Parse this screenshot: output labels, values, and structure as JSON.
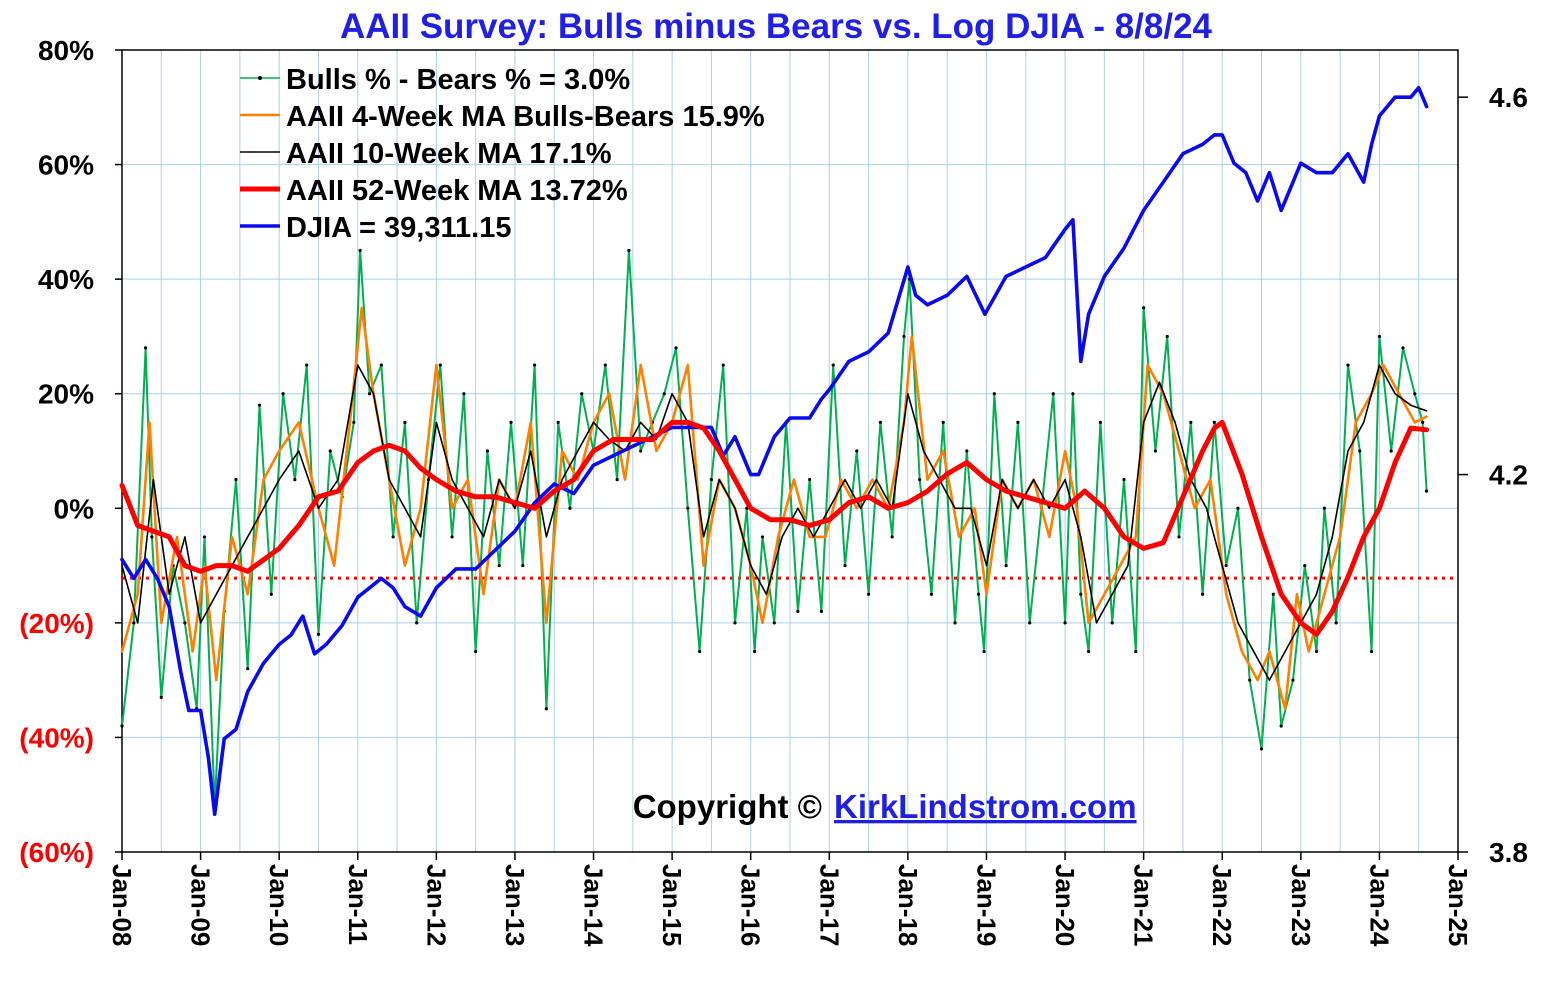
{
  "chart_data": {
    "type": "line",
    "title": "AAII Survey: Bulls minus Bears vs. Log DJIA -  8/8/24",
    "left_axis": {
      "ylim": [
        -60,
        80
      ],
      "ticks": [
        80,
        60,
        40,
        20,
        0,
        -20,
        -40,
        -60
      ],
      "tick_labels": [
        "80%",
        "60%",
        "40%",
        "20%",
        "0%",
        "(20%)",
        "(40%)",
        "(60%)"
      ]
    },
    "right_axis": {
      "ylim": [
        3.8,
        4.65
      ],
      "ticks": [
        4.6,
        4.2,
        3.8
      ],
      "tick_labels": [
        "4.6",
        "4.2",
        "3.8"
      ]
    },
    "x_axis": {
      "xlim": [
        2008.0,
        2025.0
      ],
      "ticks": [
        2008,
        2009,
        2010,
        2011,
        2012,
        2013,
        2014,
        2015,
        2016,
        2017,
        2018,
        2019,
        2020,
        2021,
        2022,
        2023,
        2024,
        2025
      ],
      "tick_labels": [
        "Jan-08",
        "Jan-09",
        "Jan-10",
        "Jan-11",
        "Jan-12",
        "Jan-13",
        "Jan-14",
        "Jan-15",
        "Jan-16",
        "Jan-17",
        "Jan-18",
        "Jan-19",
        "Jan-20",
        "Jan-21",
        "Jan-22",
        "Jan-23",
        "Jan-24",
        "Jan-25"
      ]
    },
    "reference_line": {
      "value": -12.2,
      "color": "#ff0000",
      "style": "dotted"
    },
    "series": [
      {
        "name": "Bulls % - Bears % = 3.0%",
        "color": "#00b050",
        "axis": "left",
        "x": [
          2008.0,
          2008.15,
          2008.3,
          2008.38,
          2008.5,
          2008.65,
          2008.8,
          2008.95,
          2009.05,
          2009.18,
          2009.3,
          2009.45,
          2009.6,
          2009.75,
          2009.9,
          2010.05,
          2010.2,
          2010.35,
          2010.5,
          2010.65,
          2010.8,
          2010.95,
          2011.03,
          2011.15,
          2011.3,
          2011.45,
          2011.6,
          2011.75,
          2011.9,
          2012.05,
          2012.2,
          2012.35,
          2012.5,
          2012.65,
          2012.8,
          2012.95,
          2013.1,
          2013.25,
          2013.4,
          2013.55,
          2013.7,
          2013.85,
          2014.0,
          2014.15,
          2014.3,
          2014.45,
          2014.6,
          2014.75,
          2014.9,
          2015.05,
          2015.2,
          2015.35,
          2015.5,
          2015.65,
          2015.8,
          2015.95,
          2016.05,
          2016.15,
          2016.3,
          2016.45,
          2016.6,
          2016.75,
          2016.9,
          2017.05,
          2017.2,
          2017.35,
          2017.5,
          2017.65,
          2017.8,
          2017.95,
          2018.02,
          2018.15,
          2018.3,
          2018.45,
          2018.6,
          2018.75,
          2018.9,
          2018.97,
          2019.1,
          2019.25,
          2019.4,
          2019.55,
          2019.7,
          2019.85,
          2020.0,
          2020.1,
          2020.2,
          2020.3,
          2020.45,
          2020.6,
          2020.75,
          2020.9,
          2021.0,
          2021.15,
          2021.3,
          2021.45,
          2021.6,
          2021.75,
          2021.9,
          2022.05,
          2022.2,
          2022.35,
          2022.5,
          2022.65,
          2022.75,
          2022.9,
          2023.05,
          2023.2,
          2023.3,
          2023.45,
          2023.6,
          2023.75,
          2023.9,
          2024.0,
          2024.15,
          2024.3,
          2024.45,
          2024.55,
          2024.6
        ],
        "values": [
          -38,
          -20,
          28,
          -5,
          -33,
          -10,
          -20,
          -35,
          -5,
          -52,
          -18,
          5,
          -28,
          18,
          -15,
          20,
          5,
          25,
          -22,
          10,
          2,
          15,
          45,
          20,
          25,
          -5,
          15,
          -20,
          5,
          25,
          -5,
          20,
          -25,
          10,
          -10,
          15,
          -10,
          25,
          -35,
          15,
          0,
          20,
          10,
          25,
          5,
          45,
          10,
          15,
          20,
          28,
          0,
          -25,
          5,
          25,
          -20,
          0,
          -25,
          -5,
          -20,
          15,
          -18,
          5,
          -18,
          25,
          -10,
          10,
          -15,
          15,
          -5,
          30,
          40,
          5,
          -15,
          15,
          -20,
          10,
          -15,
          -25,
          20,
          -10,
          15,
          -20,
          0,
          20,
          -20,
          20,
          -15,
          -25,
          15,
          -20,
          5,
          -25,
          35,
          10,
          30,
          -5,
          15,
          -15,
          15,
          -10,
          0,
          -30,
          -42,
          -15,
          -38,
          -30,
          -10,
          -25,
          0,
          -20,
          25,
          10,
          -25,
          30,
          10,
          28,
          20,
          15,
          3
        ]
      },
      {
        "name": "AAII 4-Week MA Bulls-Bears 15.9%",
        "color": "#ff7f00",
        "axis": "left",
        "x": [
          2008.0,
          2008.2,
          2008.35,
          2008.5,
          2008.7,
          2008.9,
          2009.05,
          2009.2,
          2009.4,
          2009.6,
          2009.8,
          2010.0,
          2010.25,
          2010.5,
          2010.7,
          2010.9,
          2011.05,
          2011.2,
          2011.4,
          2011.6,
          2011.8,
          2012.0,
          2012.2,
          2012.4,
          2012.6,
          2012.8,
          2013.0,
          2013.2,
          2013.4,
          2013.6,
          2013.8,
          2014.0,
          2014.2,
          2014.4,
          2014.6,
          2014.8,
          2015.0,
          2015.2,
          2015.4,
          2015.6,
          2015.8,
          2016.0,
          2016.15,
          2016.35,
          2016.55,
          2016.75,
          2016.95,
          2017.15,
          2017.35,
          2017.55,
          2017.75,
          2017.95,
          2018.05,
          2018.25,
          2018.45,
          2018.65,
          2018.85,
          2019.0,
          2019.2,
          2019.4,
          2019.6,
          2019.8,
          2020.0,
          2020.15,
          2020.3,
          2020.5,
          2020.7,
          2020.9,
          2021.05,
          2021.25,
          2021.45,
          2021.65,
          2021.85,
          2022.05,
          2022.25,
          2022.45,
          2022.6,
          2022.8,
          2022.95,
          2023.1,
          2023.3,
          2023.5,
          2023.7,
          2023.9,
          2024.05,
          2024.25,
          2024.45,
          2024.6
        ],
        "values": [
          -25,
          -15,
          15,
          -20,
          -5,
          -25,
          -10,
          -30,
          -5,
          -15,
          5,
          10,
          15,
          0,
          -10,
          15,
          35,
          20,
          5,
          -10,
          0,
          25,
          0,
          5,
          -15,
          5,
          0,
          15,
          -20,
          10,
          5,
          15,
          20,
          5,
          25,
          10,
          15,
          25,
          -10,
          5,
          0,
          -10,
          -20,
          -5,
          5,
          -5,
          -5,
          5,
          0,
          5,
          0,
          15,
          30,
          5,
          10,
          -5,
          0,
          -15,
          5,
          0,
          5,
          -5,
          10,
          0,
          -20,
          -15,
          -10,
          -5,
          25,
          20,
          10,
          0,
          5,
          -15,
          -25,
          -30,
          -25,
          -35,
          -15,
          -25,
          -15,
          -5,
          15,
          20,
          25,
          20,
          15,
          16
        ]
      },
      {
        "name": "AAII 10-Week MA 17.1%",
        "color": "#000000",
        "axis": "left",
        "x": [
          2008.0,
          2008.2,
          2008.4,
          2008.6,
          2008.8,
          2009.0,
          2009.2,
          2009.4,
          2009.6,
          2009.8,
          2010.0,
          2010.25,
          2010.5,
          2010.75,
          2011.0,
          2011.2,
          2011.4,
          2011.6,
          2011.8,
          2012.0,
          2012.2,
          2012.4,
          2012.6,
          2012.8,
          2013.0,
          2013.2,
          2013.4,
          2013.6,
          2013.8,
          2014.0,
          2014.2,
          2014.4,
          2014.6,
          2014.8,
          2015.0,
          2015.2,
          2015.4,
          2015.6,
          2015.8,
          2016.0,
          2016.2,
          2016.4,
          2016.6,
          2016.8,
          2017.0,
          2017.2,
          2017.4,
          2017.6,
          2017.8,
          2018.0,
          2018.2,
          2018.4,
          2018.6,
          2018.8,
          2019.0,
          2019.2,
          2019.4,
          2019.6,
          2019.8,
          2020.0,
          2020.2,
          2020.4,
          2020.6,
          2020.8,
          2021.0,
          2021.2,
          2021.4,
          2021.6,
          2021.8,
          2022.0,
          2022.2,
          2022.4,
          2022.6,
          2022.8,
          2023.0,
          2023.2,
          2023.4,
          2023.6,
          2023.8,
          2024.0,
          2024.2,
          2024.4,
          2024.6
        ],
        "values": [
          -10,
          -20,
          5,
          -15,
          -5,
          -20,
          -15,
          -10,
          -5,
          0,
          5,
          10,
          0,
          5,
          25,
          20,
          5,
          0,
          -5,
          15,
          5,
          0,
          -5,
          5,
          0,
          10,
          -5,
          5,
          10,
          15,
          12,
          10,
          15,
          12,
          20,
          15,
          -5,
          5,
          0,
          -10,
          -15,
          -5,
          0,
          -5,
          0,
          5,
          0,
          5,
          0,
          20,
          10,
          5,
          0,
          0,
          -10,
          5,
          0,
          5,
          0,
          5,
          -5,
          -20,
          -15,
          -10,
          15,
          22,
          15,
          5,
          0,
          -10,
          -20,
          -25,
          -30,
          -25,
          -20,
          -15,
          -5,
          10,
          15,
          25,
          20,
          18,
          17
        ]
      },
      {
        "name": "AAII 52-Week MA 13.72%",
        "color": "#ff0000",
        "axis": "left",
        "x": [
          2008.0,
          2008.2,
          2008.4,
          2008.6,
          2008.8,
          2009.0,
          2009.2,
          2009.4,
          2009.6,
          2009.8,
          2010.0,
          2010.25,
          2010.5,
          2010.75,
          2011.0,
          2011.2,
          2011.4,
          2011.6,
          2011.8,
          2012.0,
          2012.25,
          2012.5,
          2012.75,
          2013.0,
          2013.25,
          2013.5,
          2013.75,
          2014.0,
          2014.25,
          2014.5,
          2014.75,
          2015.0,
          2015.2,
          2015.4,
          2015.6,
          2015.8,
          2016.0,
          2016.25,
          2016.5,
          2016.75,
          2017.0,
          2017.25,
          2017.5,
          2017.75,
          2018.0,
          2018.25,
          2018.5,
          2018.75,
          2019.0,
          2019.25,
          2019.5,
          2019.75,
          2020.0,
          2020.25,
          2020.5,
          2020.75,
          2021.0,
          2021.25,
          2021.5,
          2021.75,
          2021.9,
          2022.0,
          2022.25,
          2022.5,
          2022.75,
          2023.0,
          2023.2,
          2023.4,
          2023.6,
          2023.8,
          2024.0,
          2024.2,
          2024.4,
          2024.6
        ],
        "values": [
          4,
          -3,
          -4,
          -5,
          -10,
          -11,
          -10,
          -10,
          -11,
          -9,
          -7,
          -3,
          2,
          3,
          8,
          10,
          11,
          10,
          7,
          5,
          3,
          2,
          2,
          1,
          0,
          3,
          5,
          10,
          12,
          12,
          12,
          15,
          15,
          14,
          10,
          5,
          0,
          -2,
          -2,
          -3,
          -2,
          1,
          2,
          0,
          1,
          3,
          6,
          8,
          5,
          3,
          2,
          1,
          0,
          3,
          0,
          -5,
          -7,
          -6,
          2,
          10,
          14,
          15,
          6,
          -5,
          -15,
          -20,
          -22,
          -18,
          -12,
          -5,
          0,
          8,
          14,
          13.7
        ]
      },
      {
        "name": "DJIA =  39,311.15",
        "color": "#0a0af0",
        "axis": "right",
        "x": [
          2008.0,
          2008.15,
          2008.3,
          2008.45,
          2008.6,
          2008.75,
          2008.85,
          2009.0,
          2009.1,
          2009.18,
          2009.3,
          2009.45,
          2009.6,
          2009.8,
          2010.0,
          2010.15,
          2010.3,
          2010.45,
          2010.6,
          2010.8,
          2011.0,
          2011.15,
          2011.3,
          2011.45,
          2011.6,
          2011.8,
          2012.0,
          2012.25,
          2012.5,
          2012.75,
          2013.0,
          2013.25,
          2013.5,
          2013.75,
          2014.0,
          2014.25,
          2014.5,
          2014.75,
          2015.0,
          2015.25,
          2015.5,
          2015.65,
          2015.8,
          2016.0,
          2016.1,
          2016.3,
          2016.5,
          2016.75,
          2016.9,
          2017.0,
          2017.25,
          2017.5,
          2017.75,
          2018.0,
          2018.1,
          2018.25,
          2018.5,
          2018.75,
          2018.98,
          2019.25,
          2019.5,
          2019.75,
          2020.0,
          2020.1,
          2020.2,
          2020.3,
          2020.5,
          2020.75,
          2021.0,
          2021.25,
          2021.5,
          2021.75,
          2021.9,
          2022.0,
          2022.15,
          2022.3,
          2022.45,
          2022.6,
          2022.75,
          2022.9,
          2023.0,
          2023.2,
          2023.4,
          2023.6,
          2023.8,
          2023.9,
          2024.0,
          2024.2,
          2024.4,
          2024.5,
          2024.6
        ],
        "values": [
          4.11,
          4.09,
          4.11,
          4.09,
          4.06,
          3.99,
          3.95,
          3.95,
          3.9,
          3.84,
          3.92,
          3.93,
          3.97,
          4.0,
          4.02,
          4.03,
          4.05,
          4.01,
          4.02,
          4.04,
          4.07,
          4.08,
          4.09,
          4.08,
          4.06,
          4.05,
          4.08,
          4.1,
          4.1,
          4.12,
          4.14,
          4.17,
          4.19,
          4.18,
          4.21,
          4.22,
          4.23,
          4.24,
          4.25,
          4.25,
          4.25,
          4.22,
          4.24,
          4.2,
          4.2,
          4.24,
          4.26,
          4.26,
          4.28,
          4.29,
          4.32,
          4.33,
          4.35,
          4.42,
          4.39,
          4.38,
          4.39,
          4.41,
          4.37,
          4.41,
          4.42,
          4.43,
          4.46,
          4.47,
          4.32,
          4.37,
          4.41,
          4.44,
          4.48,
          4.51,
          4.54,
          4.55,
          4.56,
          4.56,
          4.53,
          4.52,
          4.49,
          4.52,
          4.48,
          4.51,
          4.53,
          4.52,
          4.52,
          4.54,
          4.51,
          4.55,
          4.58,
          4.6,
          4.6,
          4.61,
          4.59
        ]
      }
    ],
    "legend": {
      "placement": "top-left",
      "entries": [
        "Bulls % - Bears % = 3.0%",
        "AAII 4-Week MA Bulls-Bears 15.9%",
        "AAII 10-Week MA 17.1%",
        "AAII 52-Week MA 13.72%",
        "DJIA =  39,311.15"
      ]
    }
  },
  "copyright": {
    "prefix": "Copyright ©",
    "link": "KirkLindstrom.com"
  },
  "colors": {
    "title": "#1f1fe6",
    "grid": "#a8d0ec",
    "negative_tick": "#ff0000"
  }
}
